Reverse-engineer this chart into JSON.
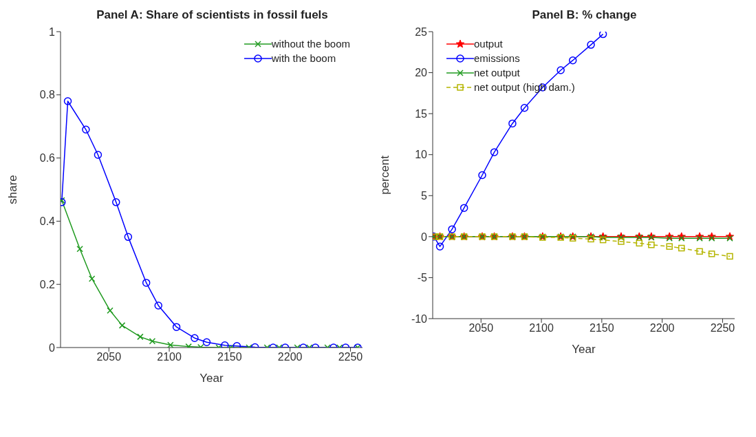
{
  "chart_data": [
    {
      "type": "line",
      "title": "Panel A: Share of scientists in fossil fuels",
      "xlabel": "Year",
      "ylabel": "share",
      "xlim": [
        2010,
        2260
      ],
      "xticks": [
        2050,
        2100,
        2150,
        2200,
        2250
      ],
      "ylim": [
        0,
        1
      ],
      "yticks": [
        0,
        0.2,
        0.4,
        0.6,
        0.8,
        1
      ],
      "legend": "top right",
      "series": [
        {
          "name": "without the boom",
          "color": "#1f9a1f",
          "marker": "cross",
          "x": [
            2011,
            2026,
            2036,
            2051,
            2061,
            2076,
            2086,
            2101,
            2116,
            2126,
            2141,
            2151,
            2166,
            2181,
            2191,
            2206,
            2216,
            2231,
            2241,
            2256
          ],
          "values": [
            0.466,
            0.312,
            0.218,
            0.117,
            0.07,
            0.034,
            0.02,
            0.008,
            0.003,
            0.001,
            0,
            0,
            0,
            0,
            0,
            0,
            0,
            0,
            0,
            0
          ]
        },
        {
          "name": "with the boom",
          "color": "#0000ff",
          "marker": "circle",
          "x": [
            2011,
            2016,
            2031,
            2041,
            2056,
            2066,
            2081,
            2091,
            2106,
            2121,
            2131,
            2146,
            2156,
            2171,
            2186,
            2196,
            2211,
            2221,
            2236,
            2246,
            2256
          ],
          "values": [
            0.46,
            0.78,
            0.69,
            0.61,
            0.46,
            0.35,
            0.205,
            0.133,
            0.065,
            0.03,
            0.017,
            0.007,
            0.005,
            0.001,
            0,
            0,
            0,
            0,
            0,
            0,
            0
          ]
        }
      ]
    },
    {
      "type": "line",
      "title": "Panel B: % change",
      "xlabel": "Year",
      "ylabel": "percent",
      "xlim": [
        2010,
        2260
      ],
      "xticks": [
        2050,
        2100,
        2150,
        2200,
        2250
      ],
      "ylim": [
        -10,
        25
      ],
      "yticks": [
        -10,
        -5,
        0,
        5,
        10,
        15,
        20,
        25
      ],
      "legend": "top left",
      "series": [
        {
          "name": "output",
          "color": "#ff0000",
          "marker": "star",
          "x": [
            2011,
            2016,
            2026,
            2036,
            2051,
            2061,
            2076,
            2086,
            2101,
            2116,
            2126,
            2141,
            2151,
            2166,
            2181,
            2191,
            2206,
            2216,
            2231,
            2241,
            2256
          ],
          "values": [
            0,
            0,
            0,
            0,
            0,
            0,
            0,
            0,
            0,
            0,
            0,
            0,
            0,
            0,
            0,
            0,
            0,
            0,
            0,
            0,
            0
          ]
        },
        {
          "name": "emissions",
          "color": "#0000ff",
          "marker": "circle",
          "x": [
            2011,
            2016,
            2026,
            2036,
            2051,
            2061,
            2076,
            2086,
            2101,
            2116,
            2126,
            2141,
            2151
          ],
          "values": [
            0,
            -1.2,
            0.9,
            3.5,
            7.5,
            10.3,
            13.8,
            15.7,
            18.2,
            20.3,
            21.5,
            23.4,
            24.7
          ]
        },
        {
          "name": "net output",
          "color": "#1f9a1f",
          "marker": "cross",
          "x": [
            2011,
            2016,
            2026,
            2036,
            2051,
            2061,
            2076,
            2086,
            2101,
            2116,
            2126,
            2141,
            2151,
            2166,
            2181,
            2191,
            2206,
            2216,
            2231,
            2241,
            2256
          ],
          "values": [
            0,
            0,
            0,
            0,
            0,
            0,
            0,
            0,
            0,
            0,
            0,
            0,
            -0.1,
            -0.1,
            -0.1,
            -0.1,
            -0.2,
            -0.2,
            -0.2,
            -0.2,
            -0.2
          ]
        },
        {
          "name": "net output (high dam.)",
          "color": "#b5b500",
          "marker": "square",
          "line_style": "dashed",
          "x": [
            2011,
            2016,
            2026,
            2036,
            2051,
            2061,
            2076,
            2086,
            2101,
            2116,
            2126,
            2141,
            2151,
            2166,
            2181,
            2191,
            2206,
            2216,
            2231,
            2241,
            2256
          ],
          "values": [
            0,
            0,
            0,
            0,
            0,
            0,
            0,
            0,
            -0.1,
            -0.1,
            -0.2,
            -0.3,
            -0.4,
            -0.6,
            -0.8,
            -1,
            -1.2,
            -1.4,
            -1.8,
            -2.1,
            -2.4
          ]
        }
      ]
    }
  ]
}
